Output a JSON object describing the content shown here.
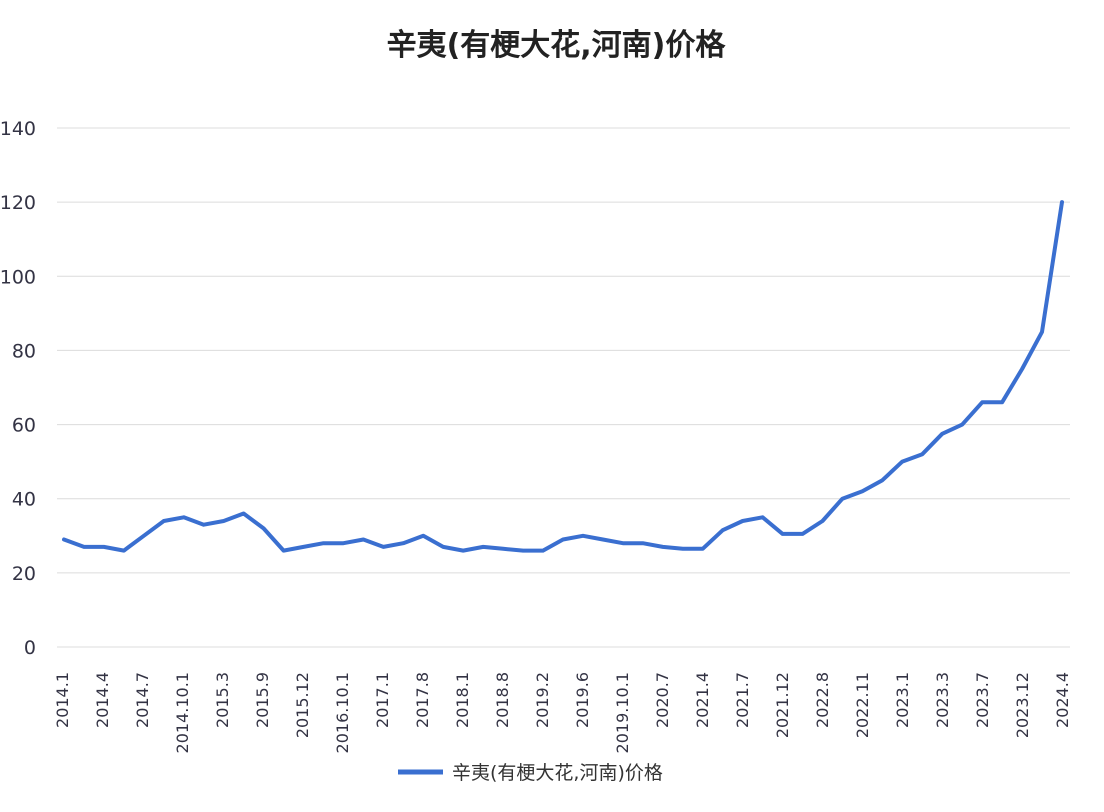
{
  "chart_data": {
    "type": "line",
    "title": "辛夷(有梗大花,河南)价格",
    "xlabel": "",
    "ylabel": "",
    "ylim": [
      0,
      140
    ],
    "yticks": [
      0,
      20,
      40,
      60,
      80,
      100,
      120,
      140
    ],
    "grid": true,
    "legend_position": "bottom",
    "x_tick_labels": [
      "2014.1",
      "2014.4",
      "2014.7",
      "2014.10.1",
      "2015.3",
      "2015.9",
      "2015.12",
      "2016.10.1",
      "2017.1",
      "2017.8",
      "2018.1",
      "2018.8",
      "2019.2",
      "2019.6",
      "2019.10.1",
      "2020.7",
      "2021.4",
      "2021.7",
      "2021.12",
      "2022.8",
      "2022.11",
      "2023.1",
      "2023.3",
      "2023.7",
      "2023.12",
      "2024.4"
    ],
    "series": [
      {
        "name": "辛夷(有梗大花,河南)价格",
        "color": "#3a6fd0",
        "values": [
          29,
          27,
          27,
          26,
          30,
          34,
          35,
          33,
          34,
          36,
          32,
          26,
          27,
          28,
          28,
          29,
          27,
          28,
          30,
          27,
          26,
          27,
          26.5,
          26,
          26,
          29,
          30,
          29,
          28,
          28,
          27,
          26.5,
          26.5,
          31.5,
          34,
          35,
          30.5,
          30.5,
          34,
          40,
          42,
          45,
          50,
          52,
          57.5,
          60,
          66,
          66,
          75,
          85,
          120
        ]
      }
    ]
  }
}
